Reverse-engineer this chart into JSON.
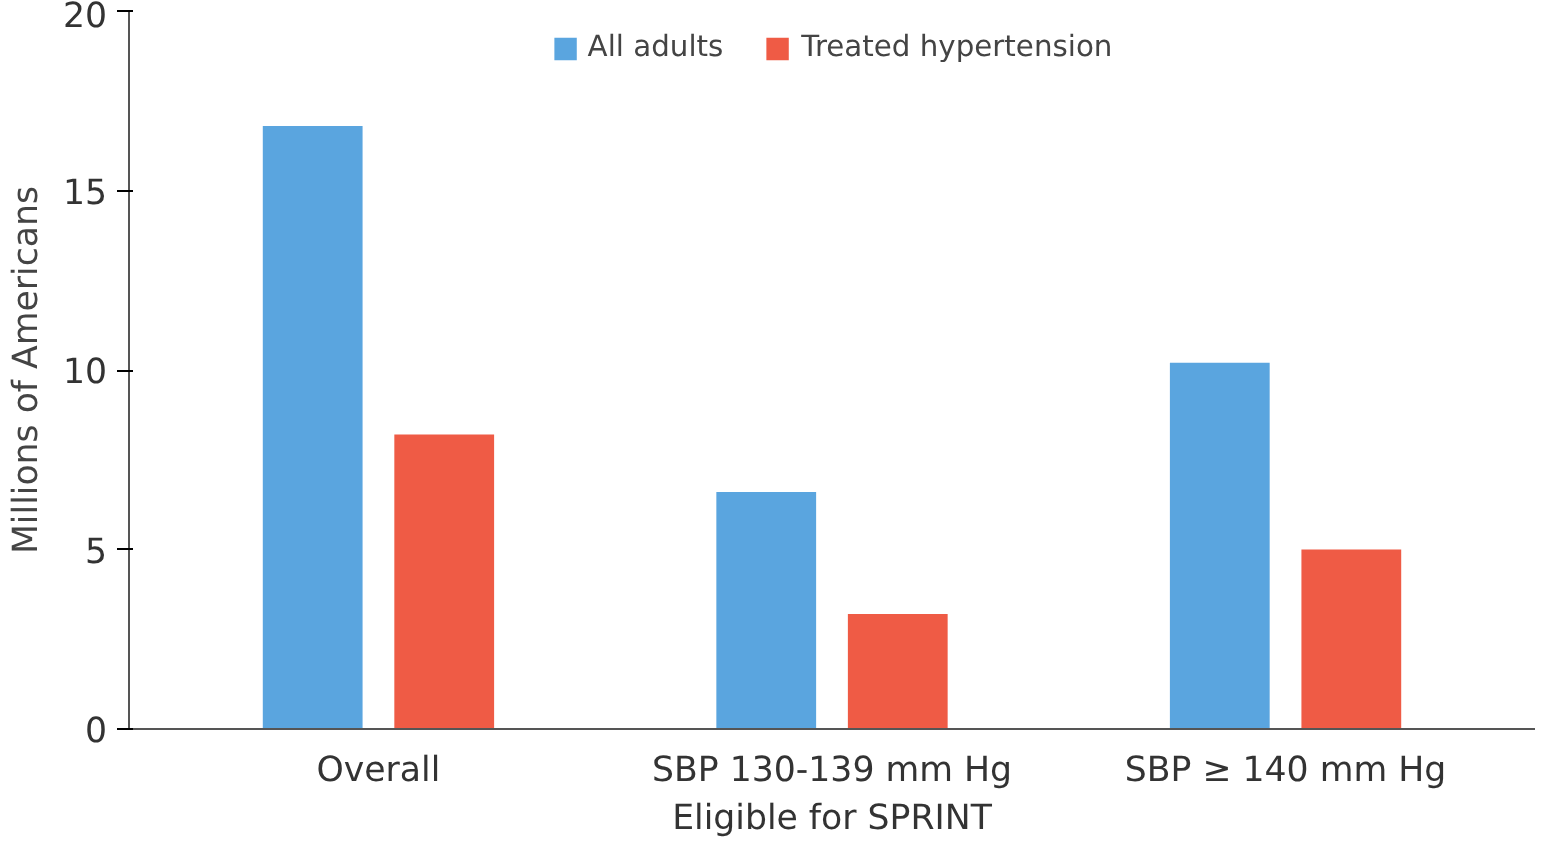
{
  "chart_data": {
    "type": "bar",
    "ylabel": "Millions of Americans",
    "categories": [
      "Overall",
      "SBP 130-139 mm Hg\nEligible for SPRINT",
      "SBP ≥ 140 mm Hg"
    ],
    "series": [
      {
        "name": "All adults",
        "color": "#5aa5df",
        "values": [
          16.8,
          6.6,
          10.2
        ]
      },
      {
        "name": "Treated hypertension",
        "color": "#ef5b45",
        "values": [
          8.2,
          3.2,
          5.0
        ]
      }
    ],
    "ylim": [
      0,
      20
    ],
    "yticks": [
      0,
      5,
      10,
      15,
      20
    ],
    "grid": false,
    "legend": "top"
  }
}
